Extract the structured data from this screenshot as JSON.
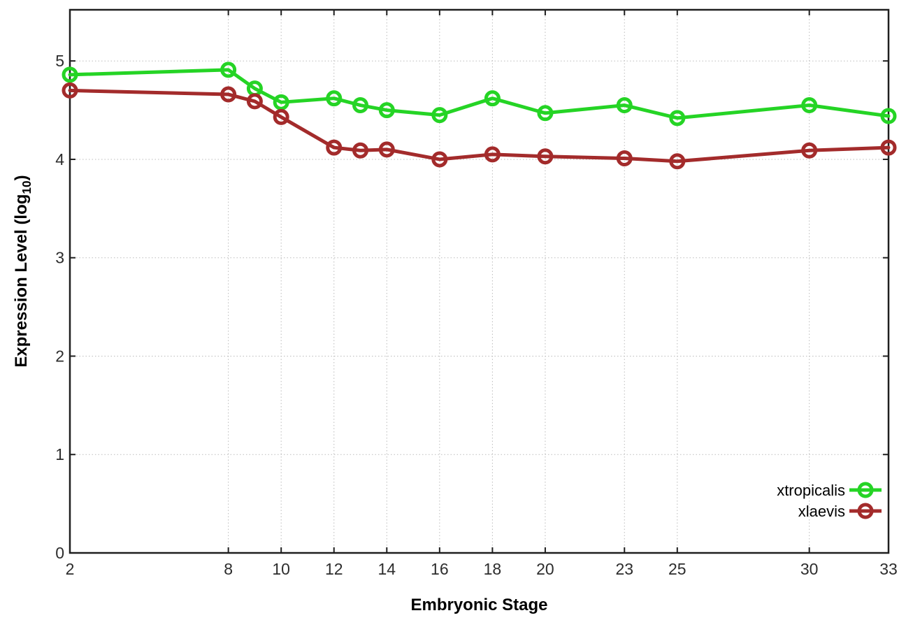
{
  "chart_data": {
    "type": "line",
    "x": [
      2,
      8,
      9,
      10,
      12,
      13,
      14,
      16,
      18,
      20,
      23,
      25,
      30,
      33
    ],
    "series": [
      {
        "name": "xtropicalis",
        "color": "#25d425",
        "values": [
          4.86,
          4.91,
          4.72,
          4.58,
          4.62,
          4.55,
          4.5,
          4.45,
          4.62,
          4.47,
          4.55,
          4.42,
          4.55,
          4.44
        ]
      },
      {
        "name": "xlaevis",
        "color": "#a32b2b",
        "values": [
          4.7,
          4.66,
          4.59,
          4.43,
          4.12,
          4.09,
          4.1,
          4.0,
          4.05,
          4.03,
          4.01,
          3.98,
          4.09,
          4.12
        ]
      }
    ],
    "title": "",
    "xlabel": "Embryonic Stage",
    "ylabel": {
      "main": "Expression Level (log",
      "sub": "10",
      "end": ")"
    },
    "xticks": [
      2,
      8,
      10,
      12,
      14,
      16,
      18,
      20,
      23,
      25,
      30,
      33
    ],
    "xtick_labels": [
      "2",
      "8",
      "10",
      "12",
      "14",
      "16",
      "18",
      "20",
      "23",
      "25",
      "30",
      "33"
    ],
    "yticks": [
      0,
      1,
      2,
      3,
      4,
      5
    ],
    "ytick_labels": [
      "0",
      "1",
      "2",
      "3",
      "4",
      "5"
    ],
    "xlim": [
      2,
      33
    ],
    "ylim": [
      0,
      5.52
    ],
    "grid": true,
    "legend_position": "inside-lower-right",
    "legend": [
      "xtropicalis",
      "xlaevis"
    ],
    "colors": {
      "background": "#ffffff",
      "border": "#1f1f1f",
      "grid": "#bbbbbb",
      "tick_text": "#2d2d2d",
      "series_green": "#25d425",
      "series_red": "#a32b2b"
    }
  }
}
